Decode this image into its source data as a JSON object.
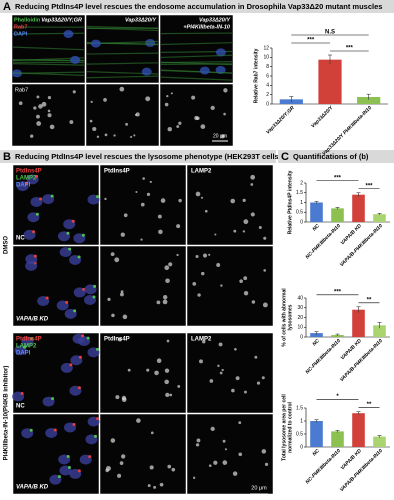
{
  "panel_a": {
    "letter": "A",
    "title": "Reducing PtdIns4P level rescues the endosome accumulation in Drosophila Vap33Δ20 mutant muscles",
    "stains": [
      {
        "text": "Phalloidin",
        "color": "#4ec24e"
      },
      {
        "text": "Rab7",
        "color": "#e84040"
      },
      {
        "text": "DAPI",
        "color": "#5b8cff"
      }
    ],
    "columns": [
      [
        "Vap33Δ20/Y;GR"
      ],
      [
        "Vap33Δ20/Y"
      ],
      [
        "Vap33Δ20/Y",
        "+PI4KIIIbeta-IN-10"
      ]
    ],
    "row_label": "Rab7",
    "scale_bar": "20 μm"
  },
  "panel_b": {
    "letter": "B",
    "title": "Reducing PtdIns4P level rescues the lysosome phenotype (HEK293T cells)",
    "stains": [
      {
        "text": "PtdIns4P",
        "color": "#e84040"
      },
      {
        "text": "LAMP2",
        "color": "#4ec24e"
      },
      {
        "text": "DAPI",
        "color": "#5b8cff"
      }
    ],
    "channel_headers": [
      "PtdIns4P",
      "LAMP2"
    ],
    "groups": [
      {
        "label": "DMSO",
        "rows": [
          "NC",
          "VAPA/B KD"
        ]
      },
      {
        "label": "PI4KIIIbeta-IN-10(PI4KB inhibitor)",
        "rows": [
          "NC",
          "VAPA/B KD"
        ]
      }
    ],
    "scale_bar": "20 μm"
  },
  "panel_c": {
    "letter": "C",
    "title": "Quantifications of (b)"
  },
  "chart_data": [
    {
      "type": "bar",
      "ylabel": [
        "Relative Rab7 intensity"
      ],
      "categories": [
        "Vap33Δ20/Y;GR",
        "Vap33Δ20/Y",
        "Vap33Δ20/Y PI4KIIIbeta-IN10"
      ],
      "values": [
        1,
        9.5,
        1.5
      ],
      "errors": [
        0.6,
        1,
        0.6
      ],
      "colors": [
        "#4b7bd0",
        "#d2403a",
        "#8cc152"
      ],
      "ylim": [
        0,
        12
      ],
      "yticks": [
        0,
        2,
        4,
        6,
        8,
        10,
        12
      ],
      "annotations": [
        {
          "text": "N.S",
          "between": [
            0,
            2
          ]
        },
        {
          "text": "***",
          "between": [
            0,
            1
          ]
        },
        {
          "text": "***",
          "between": [
            1,
            2
          ]
        }
      ]
    },
    {
      "type": "bar",
      "ylabel": [
        "Relative PtdIns4P intensity"
      ],
      "categories": [
        "NC",
        "NC-PI4KIIIbeta-IN10",
        "VAPA/B KD",
        "VAPA/B-PI4KIIIbeta-IN10"
      ],
      "values": [
        1,
        0.7,
        1.4,
        0.4
      ],
      "errors": [
        0.05,
        0.05,
        0.1,
        0.04
      ],
      "colors": [
        "#4b7bd0",
        "#8cc152",
        "#d2403a",
        "#a9d46f"
      ],
      "ylim": [
        0,
        2
      ],
      "yticks": [
        0,
        0.5,
        1,
        1.5,
        2
      ],
      "annotations": [
        {
          "text": "***",
          "between": [
            0,
            2
          ]
        },
        {
          "text": "***",
          "between": [
            2,
            3
          ]
        }
      ]
    },
    {
      "type": "bar",
      "ylabel": [
        "% of cells with abnormal",
        "lysosomes"
      ],
      "categories": [
        "NC",
        "NC-PI4KIIIbeta-IN10",
        "VAPA/B KD",
        "VAPA/B-PI4KIIIbeta-IN10"
      ],
      "values": [
        4,
        2,
        28,
        12
      ],
      "errors": [
        1.5,
        1,
        3,
        3
      ],
      "colors": [
        "#4b7bd0",
        "#8cc152",
        "#d2403a",
        "#a9d46f"
      ],
      "ylim": [
        0,
        40
      ],
      "yticks": [
        0,
        10,
        20,
        30,
        40
      ],
      "annotations": [
        {
          "text": "***",
          "between": [
            0,
            2
          ]
        },
        {
          "text": "**",
          "between": [
            2,
            3
          ]
        }
      ]
    },
    {
      "type": "bar",
      "ylabel": [
        "Total lysosome area per cell",
        "normalized to control"
      ],
      "categories": [
        "NC",
        "NC-PI4KIIIbeta-IN10",
        "VAPA/B KD",
        "VAPA/B-PI4KIIIbeta-IN10"
      ],
      "values": [
        1,
        0.6,
        1.3,
        0.4
      ],
      "errors": [
        0.05,
        0.04,
        0.06,
        0.04
      ],
      "colors": [
        "#4b7bd0",
        "#8cc152",
        "#d2403a",
        "#a9d46f"
      ],
      "ylim": [
        0,
        1.5
      ],
      "yticks": [
        0,
        0.5,
        1,
        1.5
      ],
      "annotations": [
        {
          "text": "*",
          "between": [
            0,
            2
          ]
        },
        {
          "text": "**",
          "between": [
            2,
            3
          ]
        }
      ]
    }
  ]
}
